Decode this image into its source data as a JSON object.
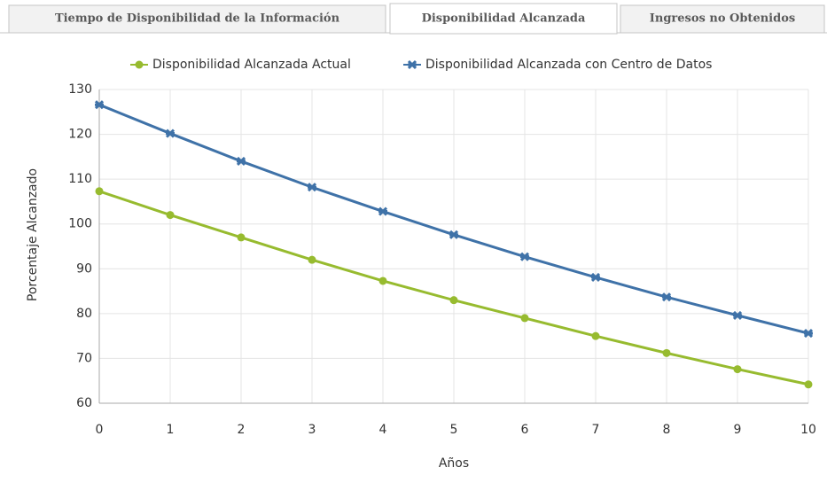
{
  "tabs": [
    {
      "label": "Tiempo de Disponibilidad de la Información"
    },
    {
      "label": "Disponibilidad Alcanzada"
    },
    {
      "label": "Ingresos no Obtenidos"
    }
  ],
  "active_tab": 1,
  "chart_data": {
    "type": "line",
    "x_label": "Años",
    "y_label": "Porcentaje Alcanzado",
    "x": [
      0,
      1,
      2,
      3,
      4,
      5,
      6,
      7,
      8,
      9,
      10
    ],
    "series": [
      {
        "name": "Disponibilidad Alcanzada Actual",
        "color": "#97bb2f",
        "marker": "circle",
        "values": [
          107.3,
          102,
          97,
          92,
          87.3,
          83,
          79,
          75,
          71.2,
          67.6,
          64.2
        ]
      },
      {
        "name": "Disponibilidad Alcanzada con Centro de Datos",
        "color": "#3f72a8",
        "marker": "x",
        "values": [
          126.6,
          120.2,
          114,
          108.2,
          102.8,
          97.6,
          92.7,
          88.1,
          83.7,
          79.6,
          75.6
        ]
      }
    ],
    "xlim": [
      0,
      10
    ],
    "xticks": [
      0,
      1,
      2,
      3,
      4,
      5,
      6,
      7,
      8,
      9,
      10
    ],
    "ylim": [
      60,
      130
    ],
    "yticks": [
      60,
      70,
      80,
      90,
      100,
      110,
      120,
      130
    ],
    "grid": true,
    "legend": "top"
  }
}
